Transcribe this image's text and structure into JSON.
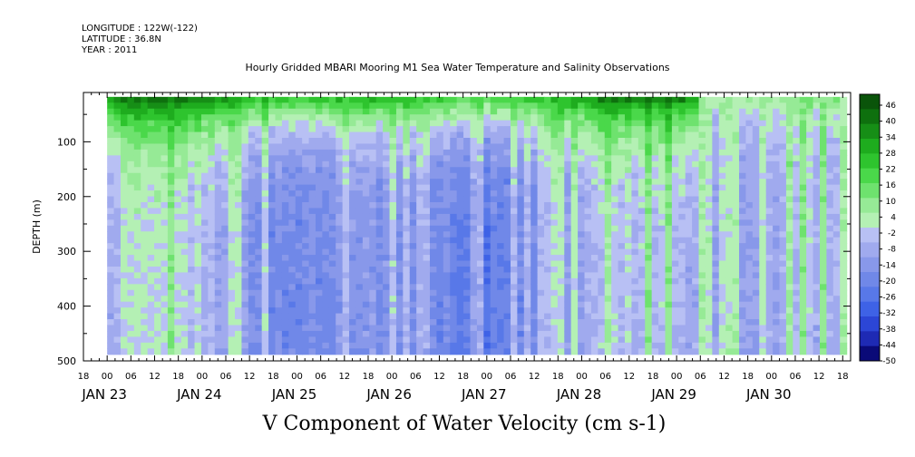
{
  "header": {
    "longitude": "LONGITUDE : 122W(-122)",
    "latitude": "LATITUDE : 36.8N",
    "year": "YEAR : 2011"
  },
  "chart_data": {
    "type": "heatmap",
    "title": "Hourly Gridded MBARI Mooring M1 Sea Water Temperature and Salinity Observations",
    "xlabel": "V Component of Water Velocity (cm s-1)",
    "ylabel": "DEPTH (m)",
    "y_range": [
      500,
      10
    ],
    "y_ticks": [
      100,
      200,
      300,
      400,
      500
    ],
    "x_range_hours": [
      "JAN 22 18:00",
      "JAN 30 20:00"
    ],
    "x_hour_ticks": [
      "18",
      "00",
      "06",
      "12",
      "18",
      "00",
      "06",
      "12",
      "18",
      "00",
      "06",
      "12",
      "18",
      "00",
      "06",
      "12",
      "18",
      "00",
      "06",
      "12",
      "18",
      "00",
      "06",
      "12",
      "18",
      "00",
      "06",
      "12",
      "18",
      "00",
      "06",
      "12",
      "18"
    ],
    "x_day_labels": [
      "JAN 23",
      "JAN 24",
      "JAN 25",
      "JAN 26",
      "JAN 27",
      "JAN 28",
      "JAN 29",
      "JAN 30"
    ],
    "colorbar": {
      "min": -50,
      "max": 50,
      "labels": [
        "46",
        "40",
        "34",
        "28",
        "22",
        "16",
        "10",
        "4",
        "-2",
        "-8",
        "-14",
        "-20",
        "-26",
        "-32",
        "-38",
        "-44",
        "-50"
      ],
      "negative_colors": [
        "#0a0a78",
        "#1e2ab4",
        "#2c46d6",
        "#3e62e6",
        "#5878e8",
        "#7088e8",
        "#8898ea",
        "#a0aaee",
        "#b8c0f4"
      ],
      "positive_colors": [
        "#b4f0b4",
        "#96ea96",
        "#6ee26e",
        "#4ad84a",
        "#2ec42e",
        "#1eac1e",
        "#168e16",
        "#0e700e",
        "#0a540a"
      ]
    },
    "grid": false,
    "legend_placement": "right",
    "data_start": "JAN 23 00:00",
    "data_end": "JAN 30 19:00",
    "depth_min_m": 18,
    "depth_max_m": 488,
    "columns_per_hour": 1,
    "value_grid_summary": {
      "surface_band_mean": 18,
      "deep_band_mean": -12
    }
  }
}
